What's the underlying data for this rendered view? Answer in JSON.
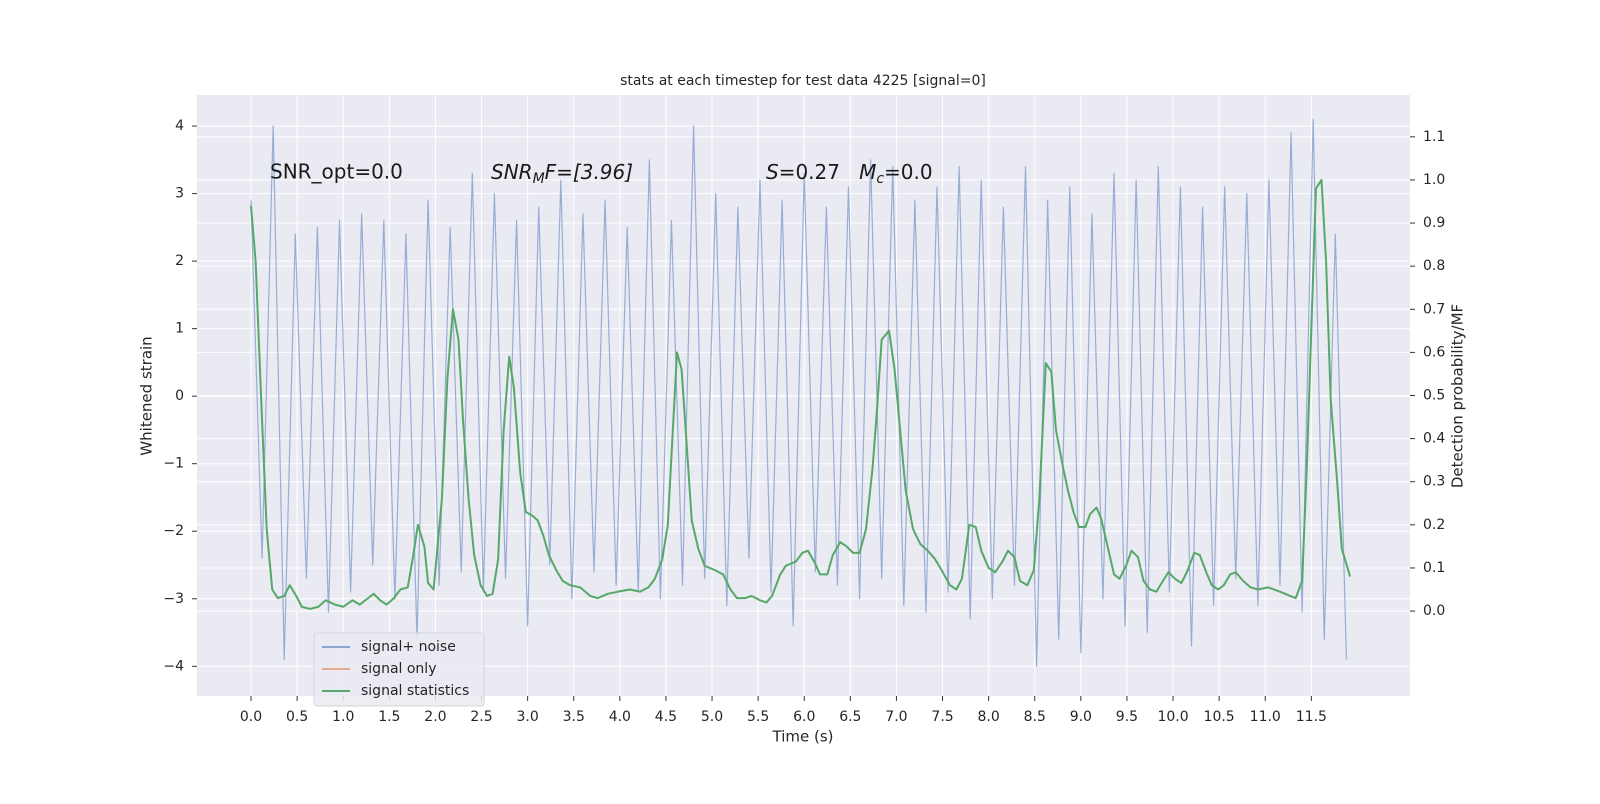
{
  "chart_data": {
    "type": "line",
    "title": "stats at each timestep for test data 4225 [signal=0]",
    "xlabel": "Time (s)",
    "ylabel": "Whitened strain",
    "y2label": "Detection probability/MF",
    "annotations": [
      {
        "text": "SNR_opt=0.0"
      },
      {
        "parts": [
          "SNR",
          "M",
          "F=[3.96]"
        ]
      },
      {
        "parts": [
          "S",
          "=0.27   ",
          "M",
          "c",
          "=0.0"
        ]
      }
    ],
    "xlim": [
      -0.586,
      12.57
    ],
    "ylim": [
      -4.44,
      4.46
    ],
    "y2lim": [
      -0.197,
      1.197
    ],
    "grid": true,
    "legend": "lower left",
    "xticks": [
      {
        "value": 0,
        "label": "0.0"
      },
      {
        "value": 0.5,
        "label": "0.5"
      },
      {
        "value": 1,
        "label": "1.0"
      },
      {
        "value": 1.5,
        "label": "1.5"
      },
      {
        "value": 2,
        "label": "2.0"
      },
      {
        "value": 2.5,
        "label": "2.5"
      },
      {
        "value": 3,
        "label": "3.0"
      },
      {
        "value": 3.5,
        "label": "3.5"
      },
      {
        "value": 4,
        "label": "4.0"
      },
      {
        "value": 4.5,
        "label": "4.5"
      },
      {
        "value": 5,
        "label": "5.0"
      },
      {
        "value": 5.5,
        "label": "5.5"
      },
      {
        "value": 6,
        "label": "6.0"
      },
      {
        "value": 6.5,
        "label": "6.5"
      },
      {
        "value": 7,
        "label": "7.0"
      },
      {
        "value": 7.5,
        "label": "7.5"
      },
      {
        "value": 8,
        "label": "8.0"
      },
      {
        "value": 8.5,
        "label": "8.5"
      },
      {
        "value": 9,
        "label": "9.0"
      },
      {
        "value": 9.5,
        "label": "9.5"
      },
      {
        "value": 10,
        "label": "10.0"
      },
      {
        "value": 10.5,
        "label": "10.5"
      },
      {
        "value": 11,
        "label": "11.0"
      },
      {
        "value": 11.5,
        "label": "11.5"
      }
    ],
    "yticks": [
      {
        "value": -4,
        "label": "−4"
      },
      {
        "value": -3,
        "label": "−3"
      },
      {
        "value": -2,
        "label": "−2"
      },
      {
        "value": -1,
        "label": "−1"
      },
      0,
      1,
      2,
      3,
      4
    ],
    "y2ticks": [
      {
        "value": 0,
        "label": "0.0"
      },
      {
        "value": 0.1,
        "label": "0.1"
      },
      {
        "value": 0.2,
        "label": "0.2"
      },
      {
        "value": 0.3,
        "label": "0.3"
      },
      {
        "value": 0.4,
        "label": "0.4"
      },
      {
        "value": 0.5,
        "label": "0.5"
      },
      {
        "value": 0.6,
        "label": "0.6"
      },
      {
        "value": 0.7,
        "label": "0.7"
      },
      {
        "value": 0.8,
        "label": "0.8"
      },
      {
        "value": 0.9,
        "label": "0.9"
      },
      {
        "value": 1,
        "label": "1.0"
      },
      {
        "value": 1.1,
        "label": "1.1"
      }
    ],
    "series": [
      {
        "name": "signal+ noise",
        "color": "#8fa6d2",
        "step": 0.12,
        "values": [
          2.9,
          -2.4,
          4.0,
          -3.9,
          2.4,
          -2.7,
          2.5,
          -3.2,
          2.6,
          -2.9,
          2.7,
          -2.5,
          2.6,
          -3.0,
          2.4,
          -3.6,
          2.9,
          -2.8,
          2.5,
          -2.6,
          3.3,
          -2.9,
          3.0,
          -2.7,
          2.6,
          -3.4,
          2.8,
          -2.5,
          3.2,
          -3.0,
          2.7,
          -2.6,
          2.9,
          -2.8,
          2.5,
          -2.9,
          3.5,
          -3.0,
          2.6,
          -2.8,
          4.0,
          -2.7,
          3.0,
          -3.1,
          2.8,
          -2.4,
          3.2,
          -2.9,
          2.9,
          -3.4,
          3.3,
          -2.6,
          2.8,
          -2.8,
          3.1,
          -3.0,
          3.5,
          -2.7,
          3.4,
          -3.1,
          2.9,
          -3.2,
          3.1,
          -2.9,
          3.4,
          -3.3,
          3.2,
          -3.0,
          2.8,
          -2.8,
          3.4,
          -4.0,
          2.9,
          -3.6,
          3.1,
          -3.8,
          2.7,
          -3.0,
          3.3,
          -3.4,
          3.2,
          -3.5,
          3.4,
          -2.9,
          3.1,
          -3.7,
          2.8,
          -3.1,
          3.1,
          -2.7,
          3.0,
          -3.1,
          3.2,
          -2.8,
          3.9,
          -3.2,
          4.1,
          -3.6,
          2.4,
          -3.9
        ]
      },
      {
        "name": "signal only",
        "color": "#e8a98c"
      },
      {
        "name": "signal statistics",
        "color": "#55a868",
        "axis": "y2",
        "x": [
          0,
          0.05,
          0.12,
          0.17,
          0.23,
          0.29,
          0.36,
          0.42,
          0.49,
          0.55,
          0.64,
          0.73,
          0.81,
          0.91,
          1.0,
          1.1,
          1.18,
          1.27,
          1.33,
          1.4,
          1.47,
          1.55,
          1.62,
          1.7,
          1.76,
          1.81,
          1.88,
          1.92,
          1.98,
          2.07,
          2.13,
          2.19,
          2.25,
          2.3,
          2.36,
          2.42,
          2.49,
          2.56,
          2.62,
          2.68,
          2.74,
          2.8,
          2.85,
          2.92,
          2.98,
          3.06,
          3.11,
          3.17,
          3.23,
          3.31,
          3.38,
          3.46,
          3.57,
          3.68,
          3.76,
          3.87,
          3.98,
          4.11,
          4.22,
          4.31,
          4.38,
          4.46,
          4.52,
          4.57,
          4.62,
          4.67,
          4.73,
          4.78,
          4.85,
          4.92,
          5.03,
          5.12,
          5.2,
          5.27,
          5.36,
          5.43,
          5.52,
          5.59,
          5.65,
          5.74,
          5.8,
          5.91,
          5.98,
          6.04,
          6.12,
          6.17,
          6.25,
          6.31,
          6.39,
          6.46,
          6.53,
          6.6,
          6.67,
          6.74,
          6.79,
          6.84,
          6.92,
          6.98,
          7.04,
          7.1,
          7.18,
          7.26,
          7.34,
          7.42,
          7.49,
          7.58,
          7.65,
          7.71,
          7.79,
          7.86,
          7.92,
          8.0,
          8.07,
          8.15,
          8.21,
          8.28,
          8.34,
          8.42,
          8.49,
          8.55,
          8.62,
          8.68,
          8.73,
          8.81,
          8.86,
          8.92,
          8.98,
          9.05,
          9.1,
          9.17,
          9.22,
          9.29,
          9.36,
          9.42,
          9.49,
          9.55,
          9.62,
          9.68,
          9.75,
          9.82,
          9.89,
          9.95,
          10.02,
          10.09,
          10.15,
          10.23,
          10.29,
          10.36,
          10.42,
          10.49,
          10.55,
          10.62,
          10.68,
          10.76,
          10.84,
          10.92,
          11.03,
          11.16,
          11.27,
          11.33,
          11.4,
          11.45,
          11.51,
          11.55,
          11.61,
          11.66,
          11.71,
          11.78,
          11.83,
          11.92
        ],
        "values": [
          0.94,
          0.81,
          0.44,
          0.19,
          0.05,
          0.03,
          0.035,
          0.06,
          0.035,
          0.01,
          0.005,
          0.01,
          0.025,
          0.015,
          0.01,
          0.025,
          0.015,
          0.03,
          0.04,
          0.025,
          0.015,
          0.03,
          0.05,
          0.055,
          0.13,
          0.2,
          0.15,
          0.065,
          0.05,
          0.26,
          0.54,
          0.7,
          0.63,
          0.44,
          0.26,
          0.13,
          0.06,
          0.035,
          0.04,
          0.12,
          0.42,
          0.59,
          0.52,
          0.32,
          0.23,
          0.22,
          0.21,
          0.175,
          0.13,
          0.095,
          0.07,
          0.06,
          0.055,
          0.035,
          0.03,
          0.04,
          0.045,
          0.05,
          0.045,
          0.055,
          0.075,
          0.12,
          0.2,
          0.4,
          0.6,
          0.56,
          0.37,
          0.21,
          0.145,
          0.105,
          0.095,
          0.085,
          0.05,
          0.03,
          0.03,
          0.035,
          0.025,
          0.02,
          0.035,
          0.085,
          0.105,
          0.115,
          0.135,
          0.14,
          0.11,
          0.085,
          0.085,
          0.13,
          0.16,
          0.15,
          0.135,
          0.135,
          0.19,
          0.33,
          0.47,
          0.63,
          0.65,
          0.56,
          0.42,
          0.28,
          0.19,
          0.155,
          0.14,
          0.12,
          0.095,
          0.06,
          0.05,
          0.075,
          0.2,
          0.195,
          0.14,
          0.1,
          0.09,
          0.115,
          0.14,
          0.125,
          0.07,
          0.06,
          0.095,
          0.26,
          0.575,
          0.555,
          0.42,
          0.33,
          0.28,
          0.23,
          0.195,
          0.195,
          0.225,
          0.24,
          0.215,
          0.15,
          0.085,
          0.075,
          0.105,
          0.14,
          0.125,
          0.07,
          0.05,
          0.045,
          0.07,
          0.09,
          0.075,
          0.065,
          0.09,
          0.135,
          0.13,
          0.09,
          0.06,
          0.05,
          0.06,
          0.085,
          0.09,
          0.07,
          0.055,
          0.05,
          0.055,
          0.045,
          0.035,
          0.03,
          0.07,
          0.33,
          0.72,
          0.98,
          1.0,
          0.81,
          0.49,
          0.3,
          0.145,
          0.08
        ]
      }
    ]
  }
}
